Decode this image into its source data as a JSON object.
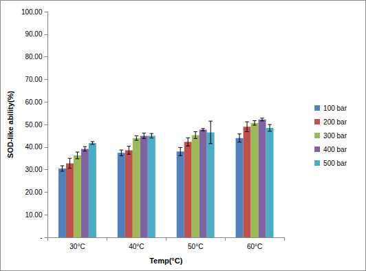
{
  "chart_data": {
    "type": "bar",
    "x_label": "Temp(°C)",
    "y_label": "SOD-like ability(%)",
    "categories": [
      "30°C",
      "40°C",
      "50°C",
      "60°C"
    ],
    "series": [
      {
        "name": "100 bar",
        "color": "#4F81BD",
        "values": [
          30.5,
          37.4,
          38.0,
          44.0
        ],
        "errors": [
          1.2,
          1.3,
          1.8,
          1.8
        ]
      },
      {
        "name": "200 bar",
        "color": "#C0504D",
        "values": [
          32.8,
          38.6,
          42.3,
          49.0
        ],
        "errors": [
          2.2,
          1.8,
          1.8,
          2.2
        ]
      },
      {
        "name": "300 bar",
        "color": "#9BBB59",
        "values": [
          36.3,
          44.0,
          45.3,
          50.7
        ],
        "errors": [
          1.5,
          1.0,
          1.5,
          1.0
        ]
      },
      {
        "name": "400 bar",
        "color": "#8064A2",
        "values": [
          39.2,
          45.0,
          47.7,
          52.2
        ],
        "errors": [
          1.0,
          1.2,
          0.5,
          0.6
        ]
      },
      {
        "name": "500 bar",
        "color": "#4BACC6",
        "values": [
          41.8,
          45.0,
          46.5,
          48.5
        ],
        "errors": [
          0.6,
          1.0,
          5.0,
          1.5
        ]
      }
    ],
    "ylim": [
      0,
      100
    ],
    "yticks": [
      {
        "value": 0,
        "label": "-"
      },
      {
        "value": 10,
        "label": "10.00"
      },
      {
        "value": 20,
        "label": "20.00"
      },
      {
        "value": 30,
        "label": "30.00"
      },
      {
        "value": 40,
        "label": "40.00"
      },
      {
        "value": 50,
        "label": "50.00"
      },
      {
        "value": 60,
        "label": "60.00"
      },
      {
        "value": 70,
        "label": "70.00"
      },
      {
        "value": 80,
        "label": "80.00"
      },
      {
        "value": 90,
        "label": "90.00"
      },
      {
        "value": 100,
        "label": "100.00"
      }
    ],
    "grid": false,
    "legend": "right"
  }
}
